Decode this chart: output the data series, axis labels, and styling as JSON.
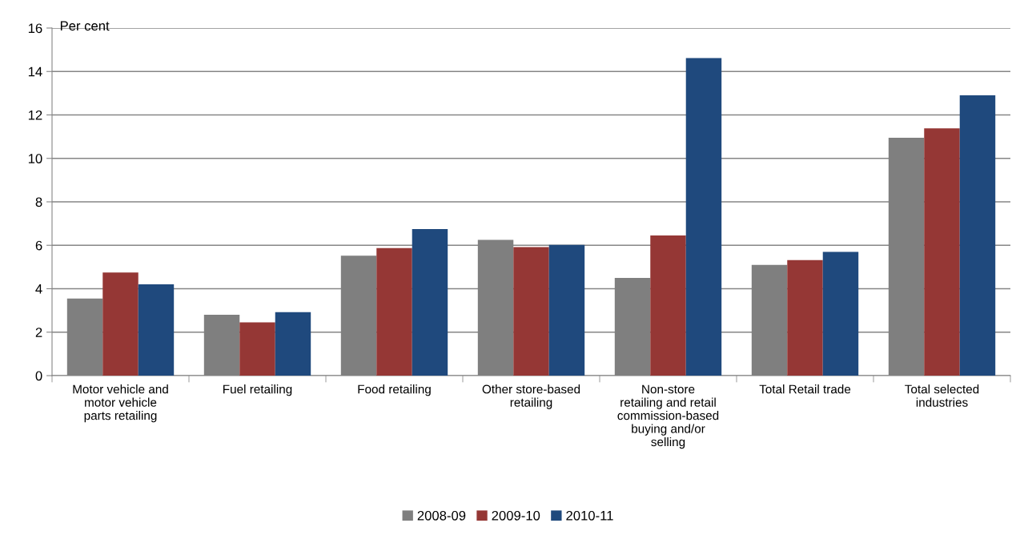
{
  "chart_data": {
    "type": "bar",
    "ylabel": "Per cent",
    "categories": [
      "Motor vehicle and\nmotor vehicle\nparts retailing",
      "Fuel retailing",
      "Food retailing",
      "Other store-based\nretailing",
      "Non-store\nretailing and retail\ncommission-based\nbuying and/or\nselling",
      "Total Retail trade",
      "Total selected\nindustries"
    ],
    "series": [
      {
        "name": "2008-09",
        "color": "#7f7f7f",
        "values": [
          3.55,
          2.8,
          5.52,
          6.25,
          4.5,
          5.1,
          10.95
        ]
      },
      {
        "name": "2009-10",
        "color": "#953735",
        "values": [
          4.75,
          2.45,
          5.87,
          5.92,
          6.45,
          5.32,
          11.38
        ]
      },
      {
        "name": "2010-11",
        "color": "#1f497d",
        "values": [
          4.2,
          2.92,
          6.75,
          6.02,
          14.62,
          5.7,
          12.9
        ]
      }
    ],
    "ylim": [
      0,
      16
    ],
    "yticks": [
      0,
      2,
      4,
      6,
      8,
      10,
      12,
      14,
      16
    ],
    "grid": "y",
    "legend": "bottom"
  }
}
